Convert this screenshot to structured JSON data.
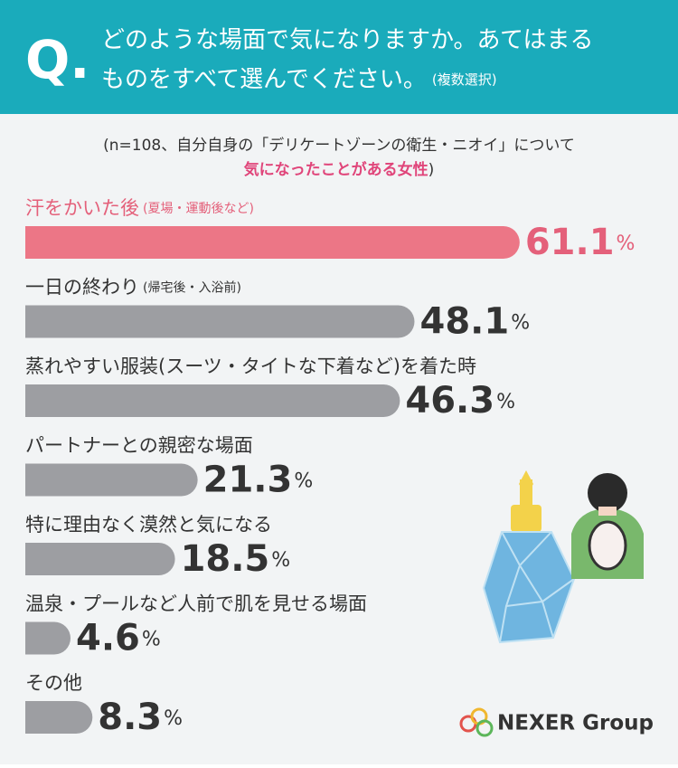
{
  "chart_data": {
    "type": "bar",
    "question_mark": "Q.",
    "title_lines": [
      "どのような場面で気になりますか。あてはまる",
      "ものをすべて選んでください。"
    ],
    "title_note": "(複数選択)",
    "subtitle": "(n=108、自分自身の「デリケートゾーンの衛生・ニオイ」について",
    "subtitle_highlight": "気になったことがある女性",
    "subtitle_end": ")",
    "categories": [
      "汗をかいた後",
      "一日の終わり",
      "蒸れやすい服装(スーツ・タイトな下着など)を着た時",
      "パートナーとの親密な場面",
      "特に理由なく漠然と気になる",
      "温泉・プールなど人前で肌を見せる場面",
      "その他"
    ],
    "sublabels": [
      "(夏場・運動後など)",
      "(帰宅後・入浴前)",
      null,
      null,
      null,
      null,
      null
    ],
    "values": [
      61.1,
      48.1,
      46.3,
      21.3,
      18.5,
      4.6,
      8.3
    ],
    "unit": "%",
    "colors": [
      "#ec7686",
      "#9d9ea2",
      "#9d9ea2",
      "#9d9ea2",
      "#9d9ea2",
      "#9d9ea2",
      "#9d9ea2"
    ],
    "label_colors": [
      "#e4607a",
      "#333333",
      "#333333",
      "#333333",
      "#333333",
      "#333333",
      "#333333"
    ],
    "logo": "NEXER Group"
  }
}
